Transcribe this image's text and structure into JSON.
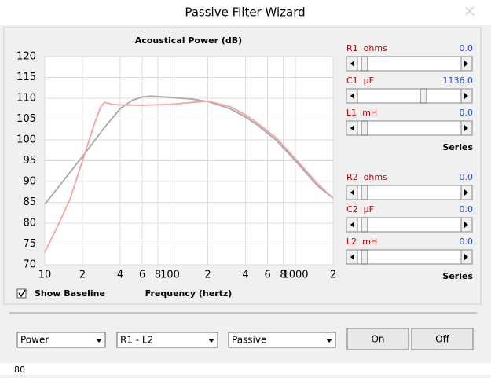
{
  "window": {
    "title": "Passive Filter Wizard"
  },
  "chart_data": {
    "type": "line",
    "title": "Acoustical Power (dB)",
    "xlabel": "Frequency (hertz)",
    "xscale": "log",
    "grid": true,
    "xlim": [
      10,
      2000
    ],
    "ylim": [
      70,
      120
    ],
    "xticks": [
      10,
      {
        "value": 20,
        "label": "2"
      },
      {
        "value": 40,
        "label": "4"
      },
      {
        "value": 60,
        "label": "6"
      },
      {
        "value": 80,
        "label": "8"
      },
      100,
      {
        "value": 200,
        "label": "2"
      },
      {
        "value": 400,
        "label": "4"
      },
      {
        "value": 600,
        "label": "6"
      },
      {
        "value": 800,
        "label": "8"
      },
      1000,
      {
        "value": 2000,
        "label": "2"
      }
    ],
    "yticks": [
      70,
      75,
      80,
      85,
      90,
      95,
      100,
      105,
      110,
      115,
      120
    ],
    "series": [
      {
        "color": "#a8a8a8",
        "x": [
          10,
          20,
          30,
          40,
          50,
          60,
          70,
          100,
          150,
          200,
          300,
          400,
          500,
          700,
          1000,
          1500,
          2000
        ],
        "values": [
          84.5,
          96,
          103,
          107.5,
          109.5,
          110.3,
          110.5,
          110.2,
          109.8,
          109.2,
          107.5,
          105.5,
          103.5,
          100,
          95,
          89,
          86
        ]
      },
      {
        "color": "#f4a4a4",
        "x": [
          10,
          13,
          16,
          20,
          25,
          28,
          30,
          35,
          40,
          60,
          100,
          150,
          200,
          300,
          400,
          500,
          700,
          1000,
          1500,
          2000
        ],
        "values": [
          73,
          80,
          86,
          95,
          104,
          108,
          109,
          108.5,
          108.4,
          108.3,
          108.5,
          109,
          109.3,
          108,
          106,
          104,
          100.5,
          95.5,
          89.5,
          86
        ]
      }
    ]
  },
  "controls": {
    "sliders": [
      {
        "label": "R1  ohms",
        "value": "0.0"
      },
      {
        "label": "C1  µF",
        "value": "1136.0"
      },
      {
        "label": "L1  mH",
        "value": "0.0"
      },
      {
        "label": "R2  ohms",
        "value": "0.0"
      },
      {
        "label": "C2  µF",
        "value": "0.0"
      },
      {
        "label": "L2  mH",
        "value": "0.0"
      }
    ],
    "series_labels": [
      "Series",
      "Series"
    ],
    "checkbox": "Show Baseline",
    "dropdowns": [
      "Power",
      "R1 - L2",
      "Passive"
    ],
    "buttons": [
      "On",
      "Off"
    ]
  },
  "bottom": {
    "label": "80"
  }
}
